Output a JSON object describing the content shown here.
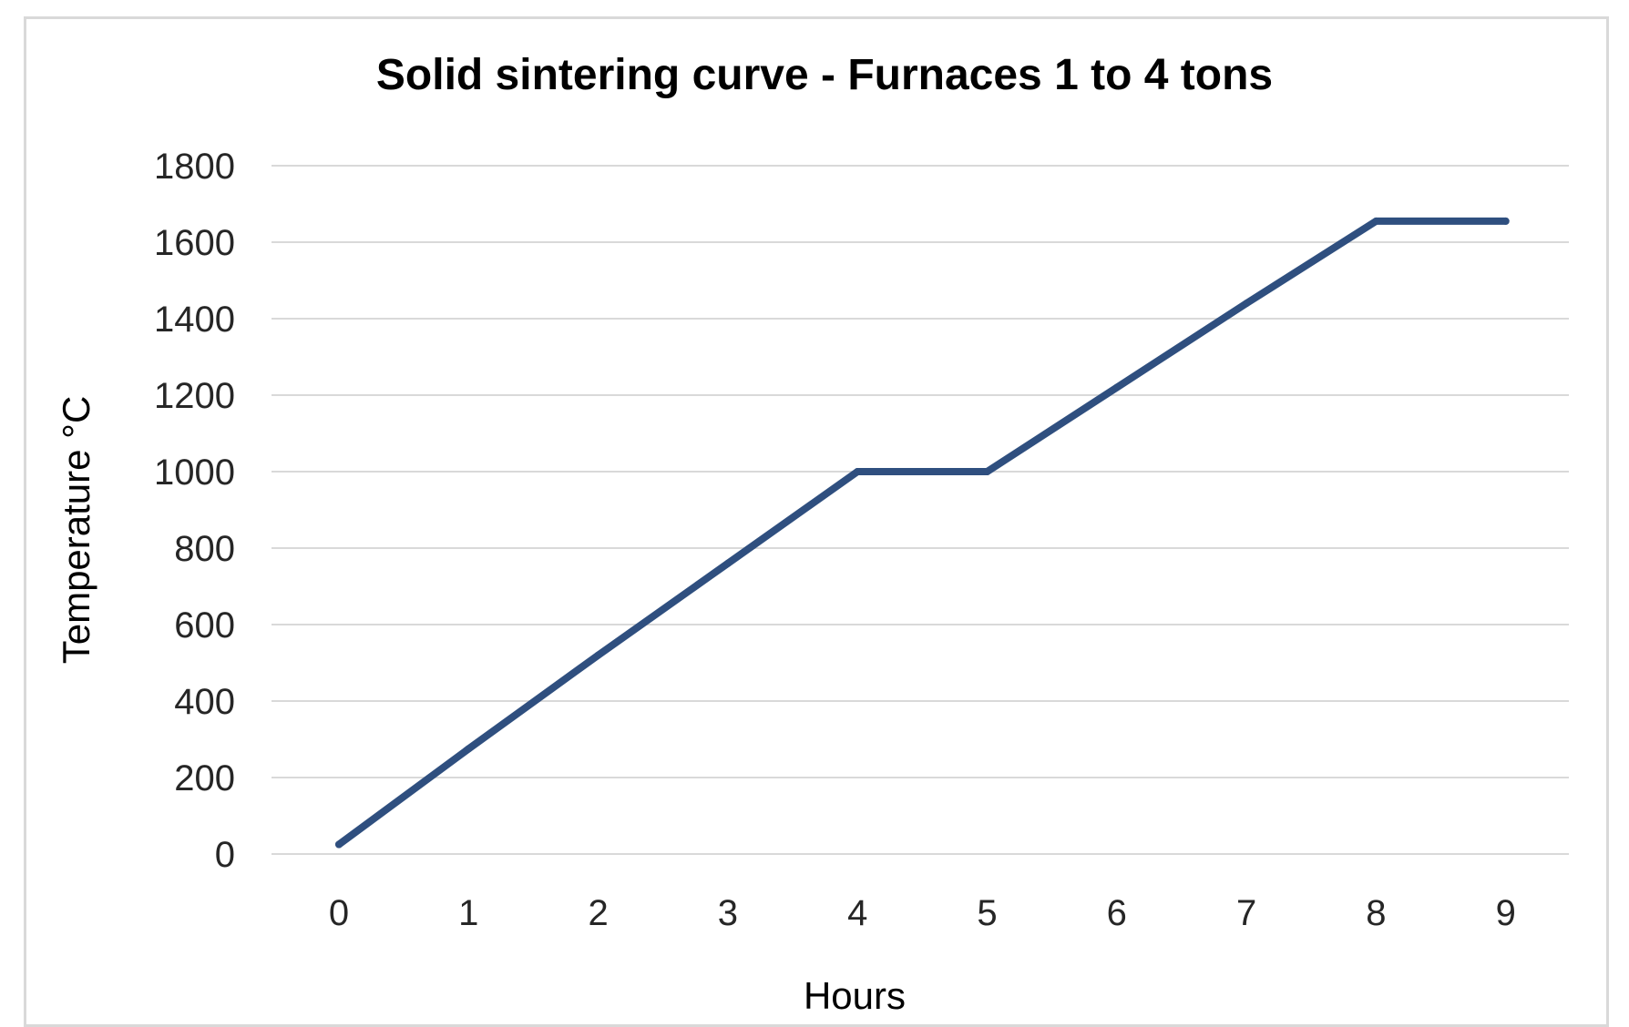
{
  "chart_data": {
    "type": "line",
    "title": "Solid sintering curve - Furnaces 1 to 4 tons",
    "xlabel": "Hours",
    "ylabel": "Temperature °C",
    "x": [
      0,
      1,
      2,
      3,
      4,
      5,
      6,
      7,
      8,
      9
    ],
    "series": [
      {
        "values": [
          25,
          275,
          520,
          760,
          1000,
          1000,
          1220,
          1440,
          1655,
          1655
        ],
        "color": "#2f4f7f"
      }
    ],
    "xticks": [
      "0",
      "1",
      "2",
      "3",
      "4",
      "5",
      "6",
      "7",
      "8",
      "9"
    ],
    "yticks": [
      "0",
      "200",
      "400",
      "600",
      "800",
      "1000",
      "1200",
      "1400",
      "1600",
      "1800"
    ],
    "ylim": [
      0,
      1800
    ],
    "grid": true,
    "legend": "none",
    "gridline_color": "#d9d9d9"
  }
}
